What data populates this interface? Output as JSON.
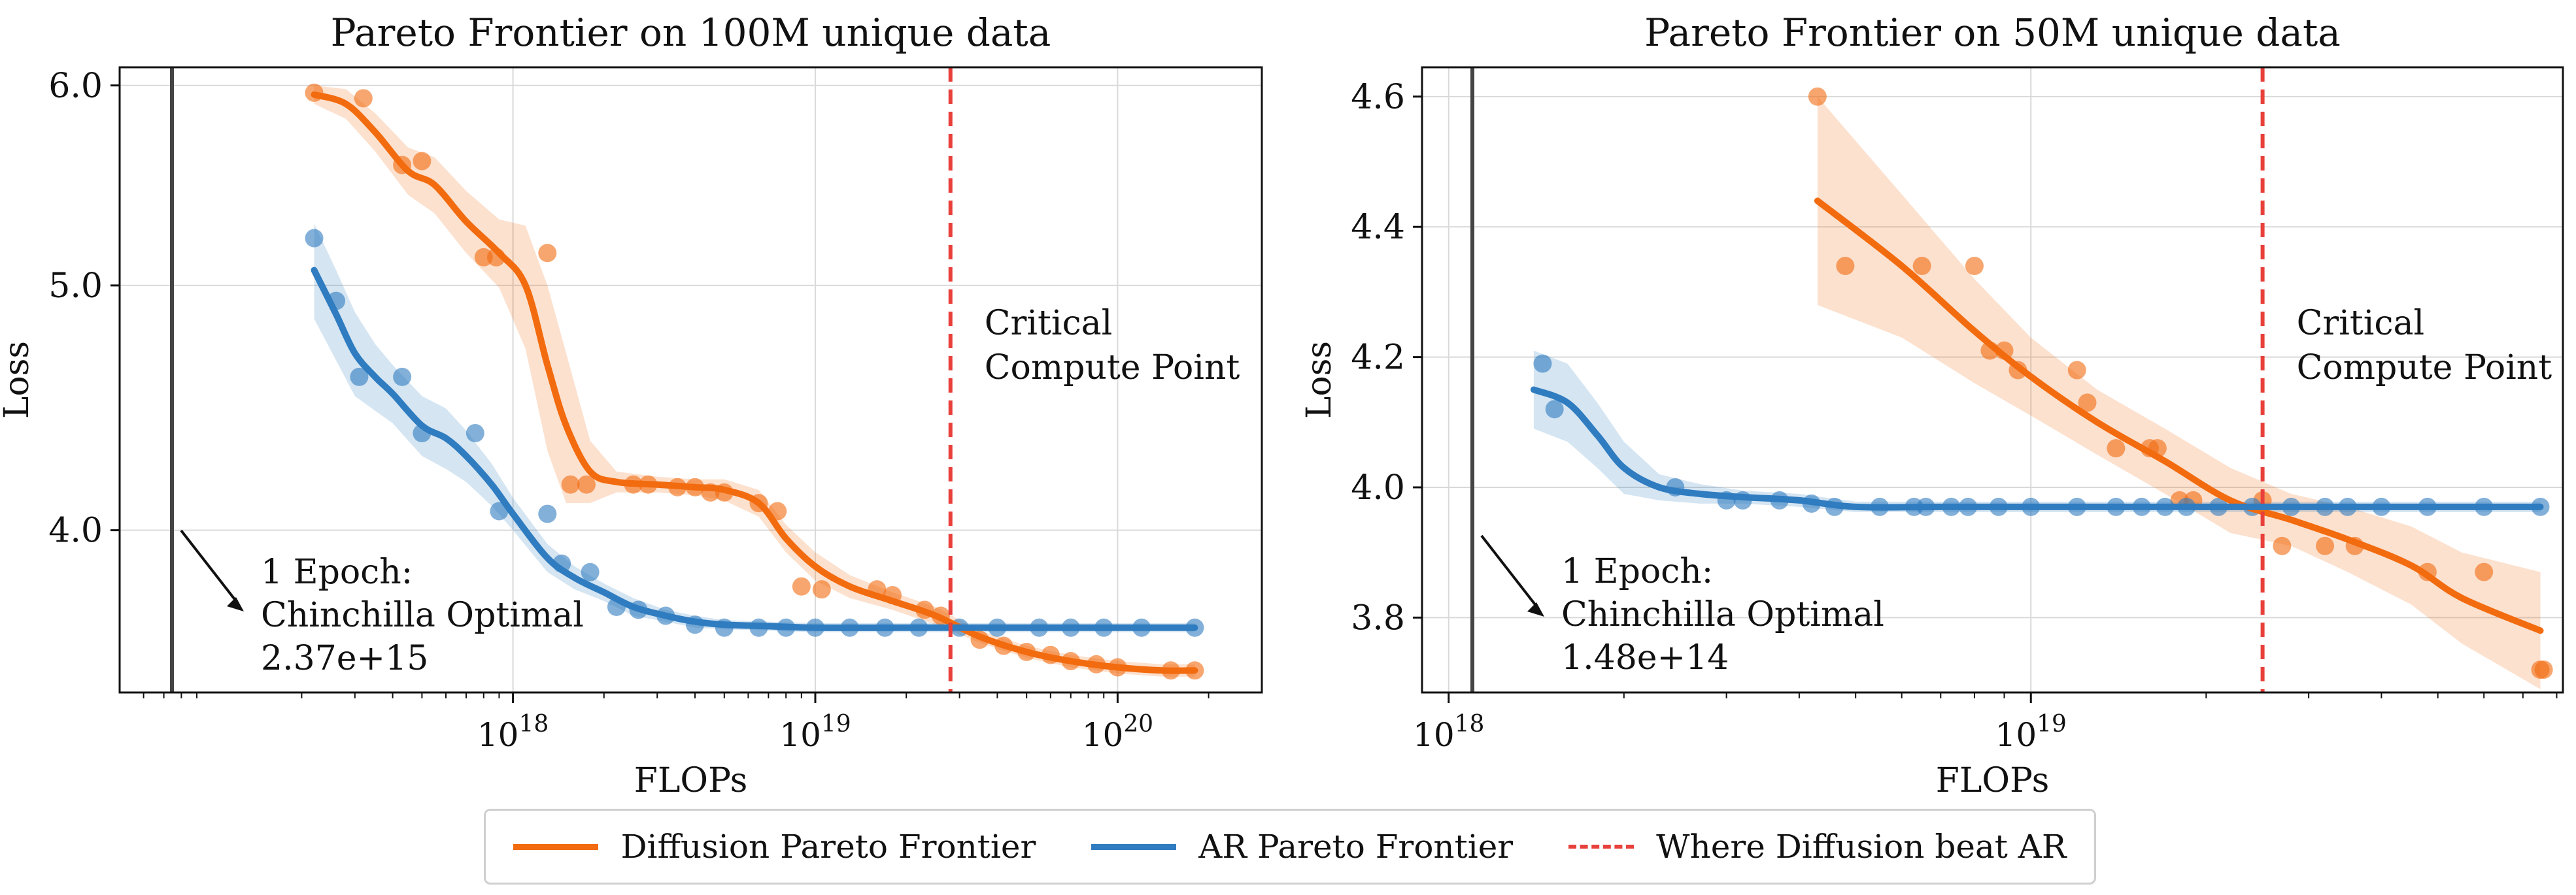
{
  "colors": {
    "diffusion": "#f26b0f",
    "ar": "#2f7cc0",
    "critical": "#e8403b",
    "epoch_line": "#444444",
    "grid": "#d9d9d9"
  },
  "legend": {
    "items": [
      {
        "label": "Diffusion Pareto Frontier",
        "style": "solid",
        "color_key": "diffusion"
      },
      {
        "label": "AR Pareto Frontier",
        "style": "solid",
        "color_key": "ar"
      },
      {
        "label": "Where Diffusion beat AR",
        "style": "dashed",
        "color_key": "critical"
      }
    ]
  },
  "chart_data": [
    {
      "type": "line",
      "title": "Pareto Frontier on 100M unique data",
      "xlabel": "FLOPs",
      "ylabel": "Loss",
      "xscale": "log",
      "yscale": "log",
      "xlim": [
        5e+16,
        3e+20
      ],
      "ylim": [
        3.45,
        6.1
      ],
      "yticks": [
        4.0,
        5.0,
        6.0
      ],
      "ytick_labels": [
        "4.0",
        "5.0",
        "6.0"
      ],
      "xticks": [
        1e+18,
        1e+19,
        1e+20
      ],
      "xtick_labels": [
        "10^18",
        "10^19",
        "10^20"
      ],
      "grid": true,
      "epoch_marker": {
        "x": 2370000000000000.0,
        "label_lines": [
          "1 Epoch:",
          "Chinchilla Optimal",
          "2.37e+15"
        ]
      },
      "critical_point": {
        "x": 2.8e+19,
        "label_lines": [
          "Critical",
          "Compute Point"
        ]
      },
      "series": [
        {
          "name": "Diffusion Pareto Frontier",
          "color_key": "diffusion",
          "line": {
            "x": [
              2.2e+17,
              2.8e+17,
              3.5e+17,
              4.5e+17,
              5.5e+17,
              7e+17,
              9e+17,
              1.1e+18,
              1.3e+18,
              1.5e+18,
              1.8e+18,
              2.2e+18,
              3e+18,
              4e+18,
              5e+18,
              6.5e+18,
              8e+18,
              1e+19,
              1.3e+19,
              1.8e+19,
              2.5e+19,
              3.5e+19,
              5e+19,
              7e+19,
              1e+20,
              1.4e+20,
              1.8e+20
            ],
            "y": [
              5.95,
              5.9,
              5.75,
              5.55,
              5.48,
              5.3,
              5.15,
              5.0,
              4.65,
              4.4,
              4.22,
              4.18,
              4.17,
              4.16,
              4.15,
              4.1,
              3.97,
              3.87,
              3.8,
              3.75,
              3.7,
              3.63,
              3.58,
              3.55,
              3.53,
              3.52,
              3.52
            ],
            "band_half_width": [
              0.05,
              0.08,
              0.1,
              0.12,
              0.14,
              0.15,
              0.16,
              0.28,
              0.35,
              0.3,
              0.12,
              0.04,
              0.03,
              0.03,
              0.04,
              0.05,
              0.05,
              0.05,
              0.04,
              0.03,
              0.03,
              0.02,
              0.02,
              0.02,
              0.02,
              0.02,
              0.02
            ]
          },
          "points": {
            "x": [
              2.2e+17,
              3.2e+17,
              4.3e+17,
              5e+17,
              8e+17,
              8.8e+17,
              1.3e+18,
              1.55e+18,
              1.75e+18,
              2.5e+18,
              2.8e+18,
              3.5e+18,
              4e+18,
              4.5e+18,
              5e+18,
              6.5e+18,
              7.5e+18,
              9e+18,
              1.05e+19,
              1.6e+19,
              1.8e+19,
              2.3e+19,
              2.6e+19,
              3.5e+19,
              4.2e+19,
              5e+19,
              6e+19,
              7e+19,
              8.5e+19,
              1e+20,
              1.5e+20,
              1.8e+20
            ],
            "y": [
              5.96,
              5.93,
              5.58,
              5.6,
              5.13,
              5.13,
              5.15,
              4.17,
              4.17,
              4.17,
              4.17,
              4.16,
              4.16,
              4.14,
              4.14,
              4.1,
              4.07,
              3.8,
              3.79,
              3.79,
              3.77,
              3.72,
              3.7,
              3.62,
              3.6,
              3.58,
              3.57,
              3.55,
              3.54,
              3.53,
              3.52,
              3.52
            ]
          }
        },
        {
          "name": "AR Pareto Frontier",
          "color_key": "ar",
          "line": {
            "x": [
              2.2e+17,
              2.6e+17,
              3e+17,
              3.5e+17,
              4e+17,
              5e+17,
              6e+17,
              7e+17,
              8.5e+17,
              1e+18,
              1.3e+18,
              1.6e+18,
              2e+18,
              2.5e+18,
              3.2e+18,
              4e+18,
              5e+18,
              7e+18,
              1e+19,
              2e+19,
              4e+19,
              8e+19,
              1.8e+20
            ],
            "y": [
              5.07,
              4.87,
              4.7,
              4.6,
              4.53,
              4.4,
              4.35,
              4.28,
              4.17,
              4.06,
              3.9,
              3.83,
              3.78,
              3.73,
              3.7,
              3.68,
              3.67,
              3.665,
              3.66,
              3.66,
              3.66,
              3.66,
              3.66
            ],
            "band_half_width": [
              0.22,
              0.2,
              0.18,
              0.14,
              0.12,
              0.12,
              0.12,
              0.1,
              0.08,
              0.06,
              0.05,
              0.04,
              0.03,
              0.03,
              0.02,
              0.02,
              0.015,
              0.015,
              0.015,
              0.015,
              0.015,
              0.015,
              0.015
            ]
          },
          "points": {
            "x": [
              2.2e+17,
              2.6e+17,
              3.1e+17,
              4.3e+17,
              5e+17,
              7.5e+17,
              9e+17,
              1.3e+18,
              1.45e+18,
              1.8e+18,
              2.2e+18,
              2.6e+18,
              3.2e+18,
              4e+18,
              5e+18,
              6.5e+18,
              8e+18,
              1e+19,
              1.3e+19,
              1.7e+19,
              2.2e+19,
              3e+19,
              4e+19,
              5.5e+19,
              7e+19,
              9e+19,
              1.2e+20,
              1.8e+20
            ],
            "y": [
              5.22,
              4.93,
              4.6,
              4.6,
              4.37,
              4.37,
              4.07,
              4.06,
              3.88,
              3.85,
              3.73,
              3.72,
              3.7,
              3.67,
              3.66,
              3.66,
              3.66,
              3.66,
              3.66,
              3.66,
              3.66,
              3.66,
              3.66,
              3.66,
              3.66,
              3.66,
              3.66,
              3.66
            ]
          }
        }
      ]
    },
    {
      "type": "line",
      "title": "Pareto Frontier on 50M unique data",
      "xlabel": "FLOPs",
      "ylabel": "Loss",
      "xscale": "log",
      "yscale": "linear",
      "xlim": [
        9e+17,
        8.2e+19
      ],
      "ylim": [
        3.685,
        4.645
      ],
      "yticks": [
        3.8,
        4.0,
        4.2,
        4.4,
        4.6
      ],
      "ytick_labels": [
        "3.8",
        "4.0",
        "4.2",
        "4.4",
        "4.6"
      ],
      "xticks": [
        1e+18,
        1e+19
      ],
      "xtick_labels": [
        "10^18",
        "10^19"
      ],
      "grid": true,
      "epoch_marker": {
        "x": 148000000000000.0,
        "label_lines": [
          "1 Epoch:",
          "Chinchilla Optimal",
          "1.48e+14"
        ]
      },
      "critical_point": {
        "x": 2.5e+19,
        "label_lines": [
          "Critical",
          "Compute Point"
        ]
      },
      "series": [
        {
          "name": "Diffusion Pareto Frontier",
          "color_key": "diffusion",
          "line": {
            "x": [
              4.3e+18,
              6e+18,
              8e+18,
              1e+19,
              1.3e+19,
              1.7e+19,
              2.2e+19,
              2.8e+19,
              3.5e+19,
              4.5e+19,
              5.5e+19,
              7.5e+19
            ],
            "y": [
              4.44,
              4.34,
              4.24,
              4.17,
              4.1,
              4.04,
              3.98,
              3.95,
              3.92,
              3.88,
              3.83,
              3.78
            ],
            "band_half_width": [
              0.16,
              0.11,
              0.08,
              0.06,
              0.05,
              0.05,
              0.05,
              0.04,
              0.05,
              0.06,
              0.07,
              0.09
            ]
          },
          "points": {
            "x": [
              4.3e+18,
              4.8e+18,
              6.5e+18,
              8e+18,
              8.5e+18,
              9e+18,
              9.5e+18,
              1.2e+19,
              1.25e+19,
              1.4e+19,
              1.6e+19,
              1.65e+19,
              1.8e+19,
              1.9e+19,
              2.5e+19,
              2.7e+19,
              3.2e+19,
              3.6e+19,
              4.8e+19,
              6e+19,
              7.5e+19,
              7.6e+19
            ],
            "y": [
              4.6,
              4.34,
              4.34,
              4.34,
              4.21,
              4.21,
              4.18,
              4.18,
              4.13,
              4.06,
              4.06,
              4.06,
              3.98,
              3.98,
              3.98,
              3.91,
              3.91,
              3.91,
              3.87,
              3.87,
              3.72,
              3.72
            ]
          }
        },
        {
          "name": "AR Pareto Frontier",
          "color_key": "ar",
          "line": {
            "x": [
              1.4e+18,
              1.6e+18,
              1.8e+18,
              2e+18,
              2.3e+18,
              2.7e+18,
              3.2e+18,
              4e+18,
              5e+18,
              7e+18,
              1e+19,
              2e+19,
              4e+19,
              7.5e+19
            ],
            "y": [
              4.15,
              4.13,
              4.08,
              4.03,
              4.0,
              3.99,
              3.985,
              3.98,
              3.97,
              3.97,
              3.97,
              3.97,
              3.97,
              3.97
            ],
            "band_half_width": [
              0.06,
              0.06,
              0.05,
              0.04,
              0.02,
              0.015,
              0.01,
              0.01,
              0.008,
              0.008,
              0.008,
              0.008,
              0.008,
              0.008
            ]
          },
          "points": {
            "x": [
              1.45e+18,
              1.52e+18,
              2.45e+18,
              3e+18,
              3.2e+18,
              3.7e+18,
              4.2e+18,
              4.6e+18,
              5.5e+18,
              6.3e+18,
              6.6e+18,
              7.3e+18,
              7.8e+18,
              8.8e+18,
              1e+19,
              1.2e+19,
              1.4e+19,
              1.55e+19,
              1.7e+19,
              1.85e+19,
              2.1e+19,
              2.4e+19,
              2.8e+19,
              3.2e+19,
              3.5e+19,
              4e+19,
              4.8e+19,
              6e+19,
              7.5e+19
            ],
            "y": [
              4.19,
              4.12,
              4.0,
              3.98,
              3.98,
              3.98,
              3.975,
              3.97,
              3.97,
              3.97,
              3.97,
              3.97,
              3.97,
              3.97,
              3.97,
              3.97,
              3.97,
              3.97,
              3.97,
              3.97,
              3.97,
              3.97,
              3.97,
              3.97,
              3.97,
              3.97,
              3.97,
              3.97,
              3.97
            ]
          }
        }
      ]
    }
  ]
}
